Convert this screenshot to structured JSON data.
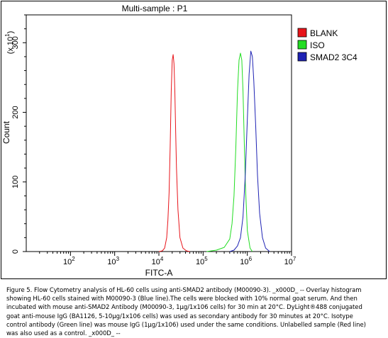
{
  "chart_data": {
    "type": "line",
    "title": "Multi-sample : P1",
    "xlabel": "FITC-A",
    "ylabel": "Count",
    "y_multiplier_label": "(x 10",
    "y_multiplier_exponent": "1",
    "x_scale": "log",
    "xlim": [
      10,
      10000000
    ],
    "ylim": [
      0,
      340
    ],
    "x_ticks": [
      {
        "base": "10",
        "exp": "2",
        "value": 100
      },
      {
        "base": "10",
        "exp": "3",
        "value": 1000
      },
      {
        "base": "10",
        "exp": "4",
        "value": 10000
      },
      {
        "base": "10",
        "exp": "5",
        "value": 100000
      },
      {
        "base": "10",
        "exp": "6",
        "value": 1000000
      },
      {
        "base": "10",
        "exp": "7",
        "value": 10000000
      }
    ],
    "y_ticks": [
      {
        "label": "0",
        "value": 0
      },
      {
        "label": "100",
        "value": 100
      },
      {
        "label": "200",
        "value": 200
      },
      {
        "label": "300",
        "value": 300
      }
    ],
    "grid": false,
    "legend_position": "top-right",
    "series": [
      {
        "name": "BLANK",
        "color": "#e8141a",
        "x": [
          10000,
          12000,
          13500,
          15000,
          16000,
          17000,
          18000,
          19000,
          20000,
          21000,
          22000,
          23000,
          24000,
          25000,
          27000,
          30000,
          35000,
          42000,
          50000
        ],
        "y": [
          0,
          1,
          5,
          20,
          45,
          85,
          150,
          230,
          275,
          283,
          270,
          230,
          170,
          120,
          60,
          20,
          5,
          1,
          0
        ]
      },
      {
        "name": "ISO",
        "color": "#22dd22",
        "x": [
          120000,
          200000,
          300000,
          400000,
          450000,
          500000,
          550000,
          600000,
          650000,
          700000,
          750000,
          800000,
          850000,
          900000,
          1000000,
          1150000,
          1300000
        ],
        "y": [
          0,
          2,
          6,
          18,
          40,
          80,
          150,
          230,
          275,
          285,
          275,
          230,
          160,
          100,
          30,
          5,
          0
        ]
      },
      {
        "name": "SMAD2 3C4",
        "color": "#1e22b4",
        "x": [
          400000,
          500000,
          600000,
          700000,
          800000,
          900000,
          1000000,
          1100000,
          1200000,
          1300000,
          1400000,
          1550000,
          1700000,
          1900000,
          2200000,
          2600000,
          3200000
        ],
        "y": [
          0,
          2,
          8,
          20,
          50,
          110,
          190,
          255,
          288,
          280,
          245,
          180,
          110,
          55,
          20,
          5,
          0
        ]
      }
    ]
  },
  "caption": "Figure 5. Flow Cytometry analysis of HL-60 cells using anti-SMAD2 antibody (M00090-3). _x000D_ -- Overlay histogram showing HL-60 cells stained with M00090-3 (Blue line).The cells were blocked with 10% normal goat serum. And then incubated with mouse anti-SMAD2 Antibody (M00090-3, 1μg/1x106 cells) for 30 min at 20°C. DyLight®488 conjugated goat anti-mouse IgG (BA1126, 5-10μg/1x106 cells) was used as secondary antibody for 30 minutes at 20°C. Isotype control antibody (Green line) was mouse IgG (1μg/1x106) used under the same conditions. Unlabelled sample (Red line) was also used as a control. _x000D_ --"
}
